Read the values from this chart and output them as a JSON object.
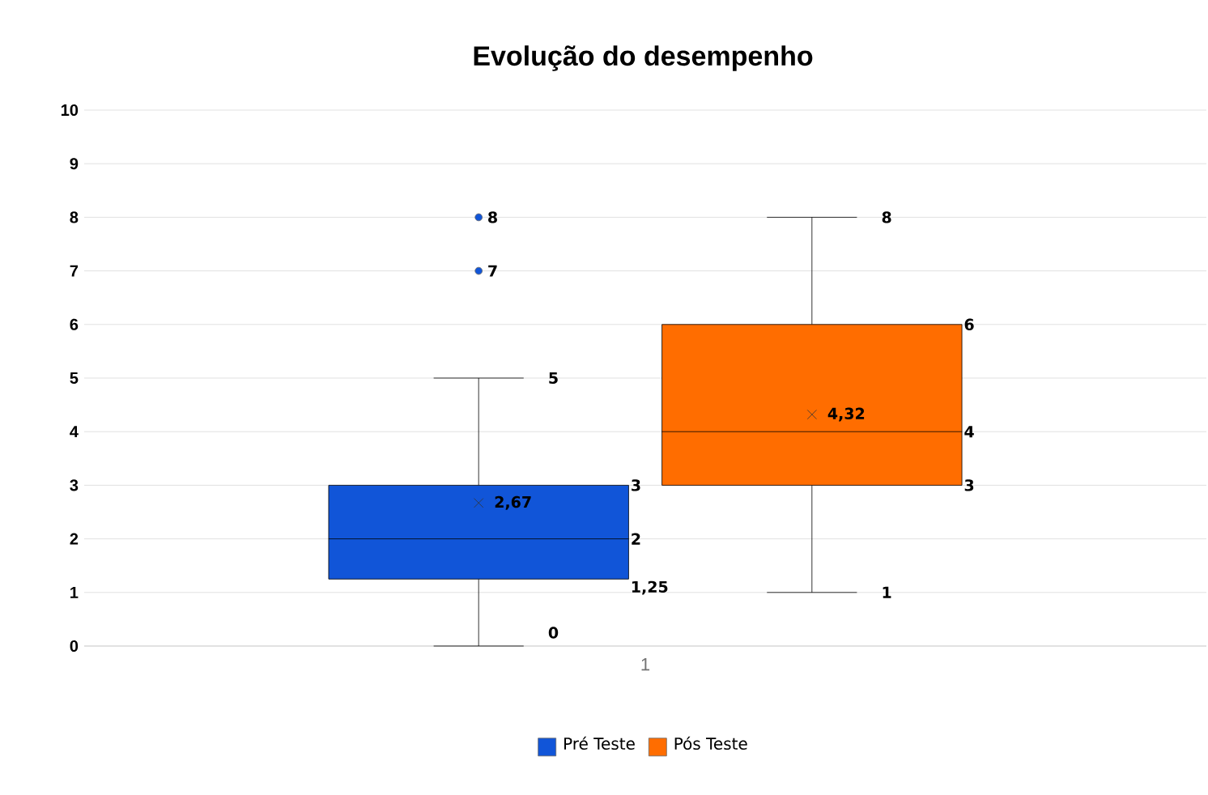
{
  "chart_data": {
    "type": "box",
    "title": "Evolução do desempenho",
    "categories": [
      "1"
    ],
    "series": [
      {
        "name": "Pré Teste",
        "color": "#1155d8",
        "boxes": [
          {
            "low": 0,
            "q1": 1.25,
            "median": 2,
            "q3": 3,
            "high": 5,
            "mean": 2.67,
            "outliers": [
              7,
              8
            ]
          }
        ]
      },
      {
        "name": "Pós Teste",
        "color": "#ff6d00",
        "boxes": [
          {
            "low": 1,
            "q1": 3,
            "median": 4,
            "q3": 6,
            "high": 8,
            "mean": 4.32
          }
        ]
      }
    ],
    "ylim": [
      0,
      10
    ],
    "yticks": [
      0,
      1,
      2,
      3,
      4,
      5,
      6,
      7,
      8,
      9,
      10
    ],
    "grid": "y",
    "legend": "bottom",
    "marker": "circle",
    "annotations": [
      "5",
      "3",
      "2",
      "1,25",
      "0",
      "2,67",
      "7",
      "8",
      "8",
      "6",
      "4",
      "3",
      "1",
      "4,32"
    ]
  }
}
